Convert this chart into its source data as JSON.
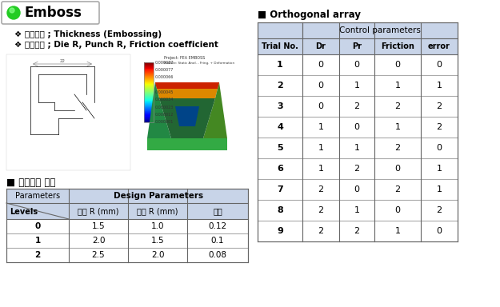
{
  "title": "Emboss",
  "objective": "❖ 목적함수 ; Thickness (Embossing)",
  "design_var": "❖ 설계변수 ; Die R, Punch R, Friction coefficient",
  "section_left": "■ 설계변수 수준",
  "section_right": "■ Orthogonal array",
  "table1_headers": [
    "Parameters",
    "Design Parameters"
  ],
  "table1_subheaders": [
    "다이 R (mm)",
    "편치 R (mm)",
    "마찰"
  ],
  "table1_col0": "Levels",
  "table1_data": [
    [
      "0",
      "1.5",
      "1.0",
      "0.12"
    ],
    [
      "1",
      "2.0",
      "1.5",
      "0.1"
    ],
    [
      "2",
      "2.5",
      "2.0",
      "0.08"
    ]
  ],
  "table2_header1": "Control parameters",
  "table2_headers": [
    "Trial No.",
    "Dr",
    "Pr",
    "Friction",
    "error"
  ],
  "table2_data": [
    [
      "1",
      "0",
      "0",
      "0",
      "0"
    ],
    [
      "2",
      "0",
      "1",
      "1",
      "1"
    ],
    [
      "3",
      "0",
      "2",
      "2",
      "2"
    ],
    [
      "4",
      "1",
      "0",
      "1",
      "2"
    ],
    [
      "5",
      "1",
      "1",
      "2",
      "0"
    ],
    [
      "6",
      "1",
      "2",
      "0",
      "1"
    ],
    [
      "7",
      "2",
      "0",
      "2",
      "1"
    ],
    [
      "8",
      "2",
      "1",
      "0",
      "2"
    ],
    [
      "9",
      "2",
      "2",
      "1",
      "0"
    ]
  ],
  "bg_color": "#ffffff",
  "table_header_color": "#c8d4e8",
  "table_data_color": "#ffffff",
  "green_color": "#22cc22",
  "title_bg": "#ffffff"
}
